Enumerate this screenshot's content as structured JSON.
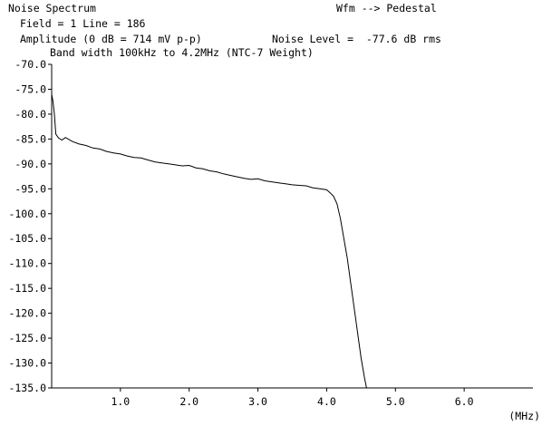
{
  "header": {
    "title": "Noise Spectrum",
    "mode": "Wfm --> Pedestal",
    "field_line": "Field = 1 Line = 186",
    "amplitude": "Amplitude (0 dB = 714 mV p-p)",
    "noise_level": "Noise Level =  -77.6 dB rms",
    "bandwidth": "Band width 100kHz to 4.2MHz (NTC-7 Weight)"
  },
  "chart_data": {
    "type": "line",
    "xlabel": "(MHz)",
    "ylabel": "",
    "xlim": [
      0,
      7.0
    ],
    "ylim": [
      -135,
      -70
    ],
    "grid": false,
    "x_ticks": [
      1.0,
      2.0,
      3.0,
      4.0,
      5.0,
      6.0
    ],
    "x_tick_labels": [
      "1.0",
      "2.0",
      "3.0",
      "4.0",
      "5.0",
      "6.0"
    ],
    "y_ticks": [
      -70,
      -75,
      -80,
      -85,
      -90,
      -95,
      -100,
      -105,
      -110,
      -115,
      -120,
      -125,
      -130,
      -135
    ],
    "y_tick_labels": [
      "-70.0",
      "-75.0",
      "-80.0",
      "-85.0",
      "-90.0",
      "-95.0",
      "-100.0",
      "-105.0",
      "-110.0",
      "-115.0",
      "-120.0",
      "-125.0",
      "-130.0",
      "-135.0"
    ],
    "series": [
      {
        "color": "#000000",
        "x": [
          0.0,
          0.02,
          0.04,
          0.06,
          0.1,
          0.15,
          0.2,
          0.3,
          0.4,
          0.5,
          0.6,
          0.7,
          0.8,
          0.9,
          1.0,
          1.1,
          1.2,
          1.3,
          1.4,
          1.5,
          1.6,
          1.7,
          1.8,
          1.9,
          2.0,
          2.1,
          2.2,
          2.3,
          2.4,
          2.5,
          2.6,
          2.7,
          2.8,
          2.9,
          3.0,
          3.1,
          3.2,
          3.3,
          3.4,
          3.5,
          3.6,
          3.7,
          3.8,
          3.9,
          4.0,
          4.05,
          4.1,
          4.15,
          4.2,
          4.25,
          4.3,
          4.35,
          4.4,
          4.45,
          4.5,
          4.55,
          4.58
        ],
        "values": [
          -76.0,
          -77.5,
          -80.0,
          -84.0,
          -84.8,
          -85.2,
          -84.7,
          -85.5,
          -86.0,
          -86.3,
          -86.8,
          -87.0,
          -87.5,
          -87.8,
          -88.0,
          -88.4,
          -88.7,
          -88.8,
          -89.2,
          -89.6,
          -89.8,
          -90.0,
          -90.2,
          -90.4,
          -90.3,
          -90.8,
          -91.0,
          -91.4,
          -91.6,
          -92.0,
          -92.3,
          -92.6,
          -92.9,
          -93.1,
          -93.0,
          -93.4,
          -93.6,
          -93.8,
          -94.0,
          -94.2,
          -94.3,
          -94.4,
          -94.8,
          -95.0,
          -95.2,
          -95.8,
          -96.5,
          -98.0,
          -101.0,
          -105.0,
          -109.0,
          -114.0,
          -119.0,
          -124.0,
          -129.0,
          -133.0,
          -135.0
        ]
      }
    ]
  }
}
